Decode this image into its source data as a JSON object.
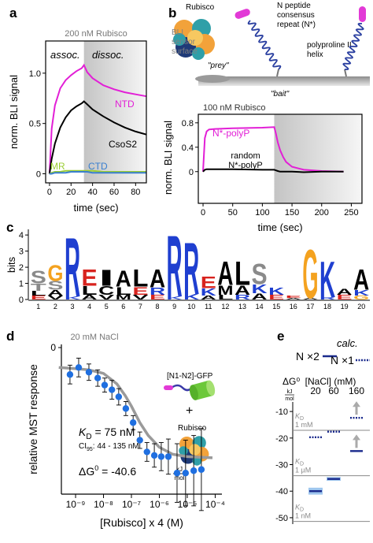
{
  "panel_labels": [
    "a",
    "b",
    "c",
    "d",
    "e"
  ],
  "diagram": {
    "rubisco": "Rubisco",
    "prey": "\"prey\"",
    "sensor": [
      "BLI",
      "sensor",
      "surface"
    ],
    "n_peptide": [
      "N peptide",
      "consensus",
      "repeat (N*)"
    ],
    "helix": [
      "polyproline II",
      "helix"
    ],
    "bait": "\"bait\""
  },
  "inset_d": {
    "construct": "[N1-N2]-GFP",
    "plus": "+",
    "rubisco": "Rubisco"
  },
  "chart_data": [
    {
      "type": "line",
      "title": "200 nM Rubisco",
      "xlabel": "time (sec)",
      "ylabel": "norm. BLI signal",
      "annotations": [
        "assoc.",
        "dissoc."
      ],
      "shaded_xrange": [
        32,
        90
      ],
      "xlim": [
        -3.6,
        90
      ],
      "ylim": [
        -0.09,
        1.32
      ],
      "xticks": [
        0,
        20,
        40,
        60,
        80
      ],
      "yticks": [
        0,
        0.5,
        {
          "value": 1,
          "label": "1.0"
        }
      ],
      "x": [
        0,
        2,
        5,
        10,
        15,
        20,
        25,
        30,
        32,
        35,
        40,
        50,
        60,
        70,
        80,
        90
      ],
      "series": [
        {
          "name": "NTD",
          "color": "#e21fd6",
          "values": [
            0,
            0.45,
            0.68,
            0.85,
            0.93,
            0.98,
            1.02,
            1.05,
            1.08,
            1.01,
            0.95,
            0.88,
            0.84,
            0.81,
            0.79,
            0.77
          ]
        },
        {
          "name": "CsoS2",
          "color": "#000000",
          "values": [
            0,
            0.15,
            0.3,
            0.46,
            0.56,
            0.63,
            0.67,
            0.7,
            0.72,
            0.69,
            0.64,
            0.57,
            0.51,
            0.46,
            0.42,
            0.39
          ]
        },
        {
          "name": "MR",
          "color": "#9acd32",
          "values": [
            0,
            0.01,
            0.02,
            0.02,
            0.03,
            0.03,
            0.03,
            0.03,
            0.03,
            0.03,
            0.03,
            0.02,
            0.02,
            0.02,
            0.02,
            0.02
          ]
        },
        {
          "name": "CTD",
          "color": "#3a7fd0",
          "values": [
            0,
            0,
            0.01,
            0.01,
            0.01,
            0.02,
            0.02,
            0.02,
            0.02,
            0.02,
            0.01,
            0.01,
            0.01,
            0.01,
            0.01,
            0.01
          ]
        }
      ]
    },
    {
      "type": "line",
      "title": "100 nM Rubisco",
      "xlabel": "time (sec)",
      "ylabel": "norm. BLI signal",
      "shaded_xrange": [
        120,
        268
      ],
      "xlim": [
        -8,
        268
      ],
      "ylim": [
        -0.52,
        0.94
      ],
      "xticks": [
        0,
        50,
        100,
        150,
        200,
        250
      ],
      "yticks": [
        0,
        0.4,
        0.8
      ],
      "x": [
        0,
        3,
        6,
        10,
        20,
        50,
        100,
        120,
        123,
        126,
        130,
        135,
        140,
        150,
        170,
        200,
        237
      ],
      "series": [
        {
          "name": "N*-polyP",
          "color": "#e21fd6",
          "values": [
            0,
            0.55,
            0.66,
            0.69,
            0.7,
            0.71,
            0.72,
            0.73,
            0.62,
            0.48,
            0.35,
            0.24,
            0.16,
            0.08,
            0.03,
            0.01,
            0
          ]
        },
        {
          "name": "random N*-polyP",
          "color": "#000000",
          "values": [
            0,
            0.03,
            0.04,
            0.04,
            0.04,
            0.04,
            0.03,
            0.03,
            0.02,
            0.01,
            0,
            0,
            0,
            0,
            -0.01,
            0,
            0
          ]
        }
      ]
    },
    {
      "type": "logo",
      "ylabel": "bits",
      "ylim": [
        0,
        4.35
      ],
      "yticks": [
        0,
        1,
        2,
        3,
        4
      ],
      "categories": [
        1,
        2,
        3,
        4,
        5,
        6,
        7,
        8,
        9,
        10,
        11,
        12,
        13,
        14,
        15,
        16,
        17,
        18,
        19,
        20
      ],
      "letter_colors": {
        "R": "#1f3fd0",
        "K": "#1f3fd0",
        "E": "#d8231e",
        "G": "#f4a21f",
        "S": "#8a8a8a",
        "T": "#8a8a8a",
        "A": "#000000",
        "L": "#000000",
        "I": "#000000",
        "V": "#000000",
        "M": "#000000",
        "C": "#000000"
      },
      "stacks": [
        [
          {
            "letter": "E",
            "height": 0.25
          },
          {
            "letter": "L",
            "height": 0.3
          },
          {
            "letter": "T",
            "height": 0.45
          },
          {
            "letter": "S",
            "height": 0.8
          }
        ],
        [
          {
            "letter": "V",
            "height": 0.25
          },
          {
            "letter": "A",
            "height": 0.35
          },
          {
            "letter": "S",
            "height": 0.55
          },
          {
            "letter": "G",
            "height": 1.0
          }
        ],
        [
          {
            "letter": "K",
            "height": 0.2
          },
          {
            "letter": "R",
            "height": 3.75
          }
        ],
        [
          {
            "letter": "A",
            "height": 0.3
          },
          {
            "letter": "L",
            "height": 0.55
          },
          {
            "letter": "E",
            "height": 1.05
          }
        ],
        [
          {
            "letter": "V",
            "height": 0.3
          },
          {
            "letter": "C",
            "height": 0.55
          },
          {
            "letter": "I",
            "height": 1.0
          }
        ],
        [
          {
            "letter": "M",
            "height": 0.3
          },
          {
            "letter": "L",
            "height": 0.5
          },
          {
            "letter": "A",
            "height": 1.0
          }
        ],
        [
          {
            "letter": "V",
            "height": 0.3
          },
          {
            "letter": "E",
            "height": 0.5
          },
          {
            "letter": "L",
            "height": 1.1
          }
        ],
        [
          {
            "letter": "E",
            "height": 0.3
          },
          {
            "letter": "R",
            "height": 0.45
          },
          {
            "letter": "A",
            "height": 1.15
          }
        ],
        [
          {
            "letter": "K",
            "height": 0.2
          },
          {
            "letter": "R",
            "height": 3.9
          }
        ],
        [
          {
            "letter": "K",
            "height": 0.35
          },
          {
            "letter": "R",
            "height": 3.3
          }
        ],
        [
          {
            "letter": "A",
            "height": 0.25
          },
          {
            "letter": "K",
            "height": 0.45
          },
          {
            "letter": "E",
            "height": 0.75
          }
        ],
        [
          {
            "letter": "L",
            "height": 0.3
          },
          {
            "letter": "M",
            "height": 0.6
          },
          {
            "letter": "A",
            "height": 1.5
          }
        ],
        [
          {
            "letter": "R",
            "height": 0.3
          },
          {
            "letter": "A",
            "height": 0.6
          },
          {
            "letter": "L",
            "height": 1.5
          }
        ],
        [
          {
            "letter": "A",
            "height": 0.4
          },
          {
            "letter": "K",
            "height": 0.55
          },
          {
            "letter": "S",
            "height": 1.3
          }
        ],
        [
          {
            "letter": "E",
            "height": 0.3
          },
          {
            "letter": "K",
            "height": 0.45
          }
        ],
        [
          {
            "letter": "A",
            "height": 0.1
          },
          {
            "letter": "E",
            "height": 0.15
          }
        ],
        [
          {
            "letter": "A",
            "height": 0.1
          },
          {
            "letter": "G",
            "height": 3.1
          }
        ],
        [
          {
            "letter": "R",
            "height": 0.15
          },
          {
            "letter": "K",
            "height": 2.3
          }
        ],
        [
          {
            "letter": "E",
            "height": 0.3
          },
          {
            "letter": "A",
            "height": 0.4
          }
        ],
        [
          {
            "letter": "G",
            "height": 0.25
          },
          {
            "letter": "K",
            "height": 0.35
          },
          {
            "letter": "A",
            "height": 1.3
          }
        ]
      ]
    },
    {
      "type": "scatter",
      "title": "20 mM NaCl",
      "xlabel": "[Rubisco] x 4 (M)",
      "ylabel": "relative MST response",
      "xlog": true,
      "xlim": [
        3.1e-10,
        0.000174
      ],
      "ylim": [
        -1.25,
        0.027
      ],
      "xticks": [
        {
          "value": 1e-09,
          "label": "10⁻⁹"
        },
        {
          "value": 1e-08,
          "label": "10⁻⁸"
        },
        {
          "value": 1e-07,
          "label": "10⁻⁷"
        },
        {
          "value": 1e-06,
          "label": "10⁻⁶"
        },
        {
          "value": 1e-05,
          "label": "10⁻⁵"
        },
        {
          "value": 0.0001,
          "label": "10⁻⁴"
        }
      ],
      "yticks": [
        0
      ],
      "x": [
        6.3e-10,
        1.29e-09,
        3e-09,
        6.2e-09,
        1.1e-08,
        2e-08,
        3.5e-08,
        6.3e-08,
        1.15e-07,
        2e-07,
        3.6e-07,
        6.6e-07,
        1.17e-06,
        2.1e-06,
        4.3e-06,
        8.7e-06,
        1.7e-05,
        3.2e-05
      ],
      "values": [
        -0.23,
        -0.17,
        -0.21,
        -0.26,
        -0.32,
        -0.36,
        -0.42,
        -0.52,
        -0.64,
        -0.79,
        -0.89,
        -0.92,
        -0.93,
        -0.93,
        -1.07,
        -1.07,
        -1.05,
        -1.04
      ],
      "errors": [
        0.08,
        0.08,
        0.07,
        0.07,
        0.06,
        0.08,
        0.07,
        0.06,
        0.06,
        0.07,
        0.08,
        0.1,
        0.12,
        0.15,
        0.25,
        0.28,
        0.3,
        0.35
      ],
      "color": "#1f6fe0",
      "fit": {
        "color": "#9a9a9a",
        "x": [
          2.5e-10,
          1e-09,
          3e-09,
          1e-08,
          3e-08,
          6e-08,
          1e-07,
          2e-07,
          4e-07,
          1e-06,
          3e-06,
          1e-05,
          8e-05
        ],
        "values": [
          -0.17,
          -0.18,
          -0.19,
          -0.22,
          -0.31,
          -0.41,
          -0.5,
          -0.64,
          -0.75,
          -0.85,
          -0.91,
          -0.93,
          -0.94
        ]
      },
      "kd": {
        "symbol": "K",
        "sub": "D",
        "value": " = 75 nM"
      },
      "ci": {
        "symbol": "CI",
        "sub": "95",
        "value": ": 44 - 135 nM"
      },
      "dg": {
        "symbol": "ΔG",
        "sup": "0",
        "value": " = -40.6 ",
        "unit_top": "kJ",
        "unit_bottom": "mol"
      }
    },
    {
      "type": "energy",
      "ylabel": "ΔG⁰",
      "unit_top": "kJ",
      "unit_bottom": "mol",
      "xlabel": "[NaCl] (mM)",
      "annotation": "calc.",
      "categories": [
        "20",
        "60",
        "160"
      ],
      "ylim": [
        -52.4,
        -6.4
      ],
      "yticks": [
        -10,
        -20,
        -30,
        -40,
        -50
      ],
      "reference_symbol": "K",
      "reference_sub": "D",
      "reference_lines": [
        {
          "value": -17.1,
          "label": "1 mM"
        },
        {
          "value": -34.2,
          "label": "1 µM"
        },
        {
          "value": -51.4,
          "label": "1 nM"
        }
      ],
      "series": [
        {
          "name": "N ×2",
          "color": "#1a2a8c",
          "style": "solid",
          "values": [
            -40,
            -35.4,
            -24.9
          ],
          "errors": [
            1.3,
            0.7,
            null
          ],
          "lower_bound": [
            false,
            false,
            true
          ]
        },
        {
          "name": "N ×1",
          "color": "#1a2a8c",
          "style": "dotted",
          "values": [
            -19.7,
            -17.6,
            -12.4
          ],
          "lower_bound": [
            false,
            false,
            true
          ]
        }
      ]
    }
  ]
}
